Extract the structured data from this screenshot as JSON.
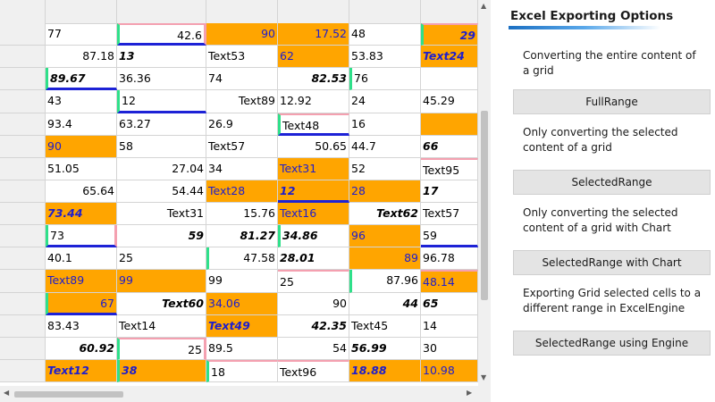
{
  "grid": {
    "rows": [
      [
        {
          "t": "77"
        },
        {
          "t": "42.6",
          "c": "r gl pt pr bb"
        },
        {
          "t": "90",
          "c": "r o"
        },
        {
          "t": "17.52",
          "c": "r o"
        },
        {
          "t": "48"
        },
        {
          "t": "29",
          "c": "r o b gl pt"
        }
      ],
      [
        {
          "t": "87.18",
          "c": "r"
        },
        {
          "t": "13",
          "c": "b"
        },
        {
          "t": "Text53"
        },
        {
          "t": "62",
          "c": "o"
        },
        {
          "t": "53.83"
        },
        {
          "t": "Text24",
          "c": "o b"
        }
      ],
      [
        {
          "t": "89.67",
          "c": "b gl bb"
        },
        {
          "t": "36.36"
        },
        {
          "t": "74"
        },
        {
          "t": "82.53",
          "c": "r b"
        },
        {
          "t": "76",
          "c": "gl"
        },
        {
          "t": ""
        }
      ],
      [
        {
          "t": "43"
        },
        {
          "t": "12",
          "c": "gl bb"
        },
        {
          "t": "Text89",
          "c": "r"
        },
        {
          "t": "12.92"
        },
        {
          "t": "24"
        },
        {
          "t": "45.29"
        }
      ],
      [
        {
          "t": "93.4"
        },
        {
          "t": "63.27"
        },
        {
          "t": "26.9"
        },
        {
          "t": "Text48",
          "c": "gl pt bb"
        },
        {
          "t": "16"
        },
        {
          "t": "",
          "c": "o"
        }
      ],
      [
        {
          "t": "90",
          "c": "o"
        },
        {
          "t": "58"
        },
        {
          "t": "Text57"
        },
        {
          "t": "50.65",
          "c": "r"
        },
        {
          "t": "44.7"
        },
        {
          "t": "66",
          "c": "b"
        }
      ],
      [
        {
          "t": "51.05"
        },
        {
          "t": "27.04",
          "c": "r"
        },
        {
          "t": "34"
        },
        {
          "t": "Text31",
          "c": "o"
        },
        {
          "t": "52"
        },
        {
          "t": "Text95",
          "c": "pt"
        }
      ],
      [
        {
          "t": "65.64",
          "c": "r"
        },
        {
          "t": "54.44",
          "c": "r"
        },
        {
          "t": "Text28",
          "c": "o"
        },
        {
          "t": "12",
          "c": "o b bb"
        },
        {
          "t": "28",
          "c": "o"
        },
        {
          "t": "17",
          "c": "b"
        }
      ],
      [
        {
          "t": "73.44",
          "c": "o b"
        },
        {
          "t": "Text31",
          "c": "r"
        },
        {
          "t": "15.76",
          "c": "r"
        },
        {
          "t": "Text16",
          "c": "o"
        },
        {
          "t": "Text62",
          "c": "r b"
        },
        {
          "t": "Text57"
        }
      ],
      [
        {
          "t": "73",
          "c": "gl pr bb"
        },
        {
          "t": "59",
          "c": "r b"
        },
        {
          "t": "81.27",
          "c": "r b"
        },
        {
          "t": "34.86",
          "c": "b gl"
        },
        {
          "t": "96",
          "c": "o"
        },
        {
          "t": "59",
          "c": "bb"
        }
      ],
      [
        {
          "t": "40.1"
        },
        {
          "t": "25"
        },
        {
          "t": "47.58",
          "c": "r gl"
        },
        {
          "t": "28.01",
          "c": "b"
        },
        {
          "t": "89",
          "c": "r o"
        },
        {
          "t": "96.78"
        }
      ],
      [
        {
          "t": "Text89",
          "c": "o"
        },
        {
          "t": "99",
          "c": "o"
        },
        {
          "t": "99"
        },
        {
          "t": "25",
          "c": "pt"
        },
        {
          "t": "87.96",
          "c": "r gl"
        },
        {
          "t": "48.14",
          "c": "o pt"
        }
      ],
      [
        {
          "t": "67",
          "c": "r o gl bb"
        },
        {
          "t": "Text60",
          "c": "r b"
        },
        {
          "t": "34.06",
          "c": "o"
        },
        {
          "t": "90",
          "c": "r"
        },
        {
          "t": "44",
          "c": "r b"
        },
        {
          "t": "65",
          "c": "b"
        }
      ],
      [
        {
          "t": "83.43"
        },
        {
          "t": "Text14"
        },
        {
          "t": "Text49",
          "c": "o b"
        },
        {
          "t": "42.35",
          "c": "r b"
        },
        {
          "t": "Text45"
        },
        {
          "t": "14"
        }
      ],
      [
        {
          "t": "60.92",
          "c": "r b"
        },
        {
          "t": "25",
          "c": "r gl pt pr"
        },
        {
          "t": "89.5"
        },
        {
          "t": "54",
          "c": "r"
        },
        {
          "t": "56.99",
          "c": "b"
        },
        {
          "t": "30"
        }
      ],
      [
        {
          "t": "Text12",
          "c": "o b"
        },
        {
          "t": "38",
          "c": "o b gl"
        },
        {
          "t": "18",
          "c": "gl pt"
        },
        {
          "t": "Text96",
          "c": "pt"
        },
        {
          "t": "18.88",
          "c": "o b"
        },
        {
          "t": "10.98",
          "c": "o"
        }
      ]
    ]
  },
  "panel": {
    "title": "Excel Exporting Options",
    "sections": [
      {
        "desc": "Converting the entire content of a grid",
        "button": "FullRange"
      },
      {
        "desc": "Only converting the selected content of a grid",
        "button": "SelectedRange"
      },
      {
        "desc": "Only converting the selected content of a grid with Chart",
        "button": "SelectedRange with Chart"
      },
      {
        "desc": "Exporting Grid selected cells to a different range in ExcelEngine",
        "button": "SelectedRange using Engine"
      }
    ]
  },
  "colors": {
    "highlight": "#ffa500",
    "highlight_text": "#1e1ecc",
    "border_green": "#2fe08a",
    "border_blue": "#1d22d6",
    "border_pink": "#f4a0b0"
  },
  "icons": {
    "scroll_up": "scroll-up-icon",
    "scroll_down": "scroll-down-icon",
    "scroll_left": "scroll-left-icon",
    "scroll_right": "scroll-right-icon"
  }
}
